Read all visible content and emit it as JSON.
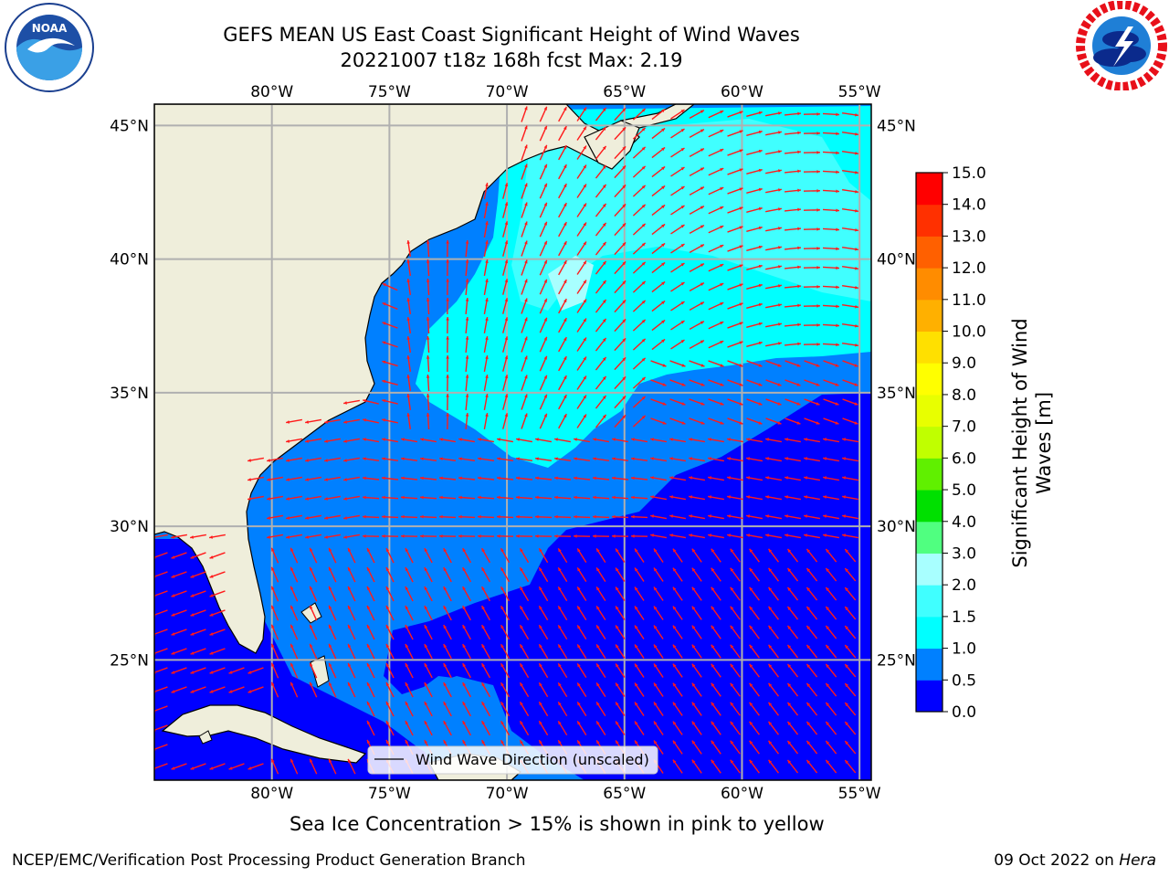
{
  "header": {
    "title_line1": "GEFS MEAN US East Coast Significant Height of Wind Waves",
    "title_line2": "20221007 t18z 168h fcst   Max: 2.19"
  },
  "logos": {
    "left": {
      "icon": "noaa-logo-icon",
      "text": "NOAA"
    },
    "right": {
      "icon": "national-weather-service-logo-icon"
    }
  },
  "map": {
    "lon_labels": [
      "80°W",
      "75°W",
      "70°W",
      "65°W",
      "60°W",
      "55°W"
    ],
    "lat_labels": [
      "45°N",
      "40°N",
      "35°N",
      "30°N",
      "25°N"
    ],
    "lon_values": [
      -80,
      -75,
      -70,
      -65,
      -60,
      -55
    ],
    "lat_values": [
      45,
      40,
      35,
      30,
      25
    ],
    "extent": {
      "lon": [
        -85,
        -54.5
      ],
      "lat": [
        20.5,
        45.8
      ]
    },
    "colors": {
      "land": "#efeedb",
      "coast": "#000000",
      "grid": "#b0b0b0",
      "arrow": "#ff1a1a"
    }
  },
  "legend": {
    "label": "Wind Wave Direction (unscaled)"
  },
  "colorbar": {
    "title_line1": "Significant Height of Wind",
    "title_line2": "Waves [m]",
    "ticks": [
      "0.0",
      "0.5",
      "1.0",
      "1.5",
      "2.0",
      "3.0",
      "4.0",
      "5.0",
      "6.0",
      "7.0",
      "8.0",
      "9.0",
      "10.0",
      "11.0",
      "12.0",
      "13.0",
      "14.0",
      "15.0"
    ],
    "colors": [
      "#0000ff",
      "#0080ff",
      "#00ffff",
      "#40ffff",
      "#a8ffff",
      "#50ff80",
      "#00e000",
      "#60f000",
      "#c0ff00",
      "#e8ff00",
      "#ffff00",
      "#ffe000",
      "#ffb000",
      "#ff8c00",
      "#ff6000",
      "#ff3000",
      "#ff0000"
    ]
  },
  "footer": {
    "ice_note": "Sea Ice Concentration > 15% is shown in pink to yellow",
    "credit": "NCEP/EMC/Verification Post Processing Product Generation Branch",
    "date": "09 Oct 2022 on ",
    "host": "Hera"
  }
}
